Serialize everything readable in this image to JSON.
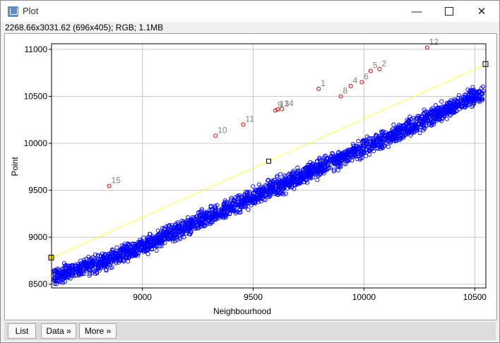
{
  "window": {
    "title": "Plot"
  },
  "info_line": "2268.66x3031.62  (696x405); RGB; 1.1MB",
  "buttons": {
    "list": "List",
    "data": "Data »",
    "more": "More »"
  },
  "colors": {
    "points": "#0000ff",
    "highlight": "#d40000",
    "fit_line": "#ffff40",
    "grid": "#c8c8c8"
  },
  "chart_data": {
    "type": "scatter",
    "xlabel": "Neighbourhood",
    "ylabel": "Point",
    "xlim": [
      8590,
      10550
    ],
    "ylim": [
      8460,
      11060
    ],
    "x_ticks": [
      9000,
      9500,
      10000,
      10500
    ],
    "y_ticks": [
      8500,
      9000,
      9500,
      10000,
      10500,
      11000
    ],
    "grid": true,
    "trend_line": {
      "x": [
        8590,
        10550
      ],
      "y": [
        8780,
        10840
      ]
    },
    "main_cloud": {
      "description_x": [
        8600,
        10540
      ],
      "trend_x": [
        8600,
        8800,
        9000,
        9200,
        9400,
        9600,
        9800,
        10000,
        10200,
        10400,
        10520
      ],
      "trend_y": [
        8580,
        8720,
        8900,
        9110,
        9320,
        9530,
        9740,
        9950,
        10170,
        10390,
        10520
      ]
    },
    "outliers": [
      {
        "label": "1",
        "x": 9795,
        "y": 10580
      },
      {
        "label": "2",
        "x": 10070,
        "y": 10790
      },
      {
        "label": "4",
        "x": 9940,
        "y": 10610
      },
      {
        "label": "5",
        "x": 10030,
        "y": 10770
      },
      {
        "label": "6",
        "x": 9990,
        "y": 10650
      },
      {
        "label": "8",
        "x": 9895,
        "y": 10500
      },
      {
        "label": "9",
        "x": 9600,
        "y": 10350
      },
      {
        "label": "10",
        "x": 9330,
        "y": 10080
      },
      {
        "label": "11",
        "x": 9455,
        "y": 10200
      },
      {
        "label": "12",
        "x": 10285,
        "y": 11020
      },
      {
        "label": "13",
        "x": 9610,
        "y": 10360
      },
      {
        "label": "14",
        "x": 9630,
        "y": 10365
      },
      {
        "label": "15",
        "x": 8850,
        "y": 9545
      }
    ]
  }
}
